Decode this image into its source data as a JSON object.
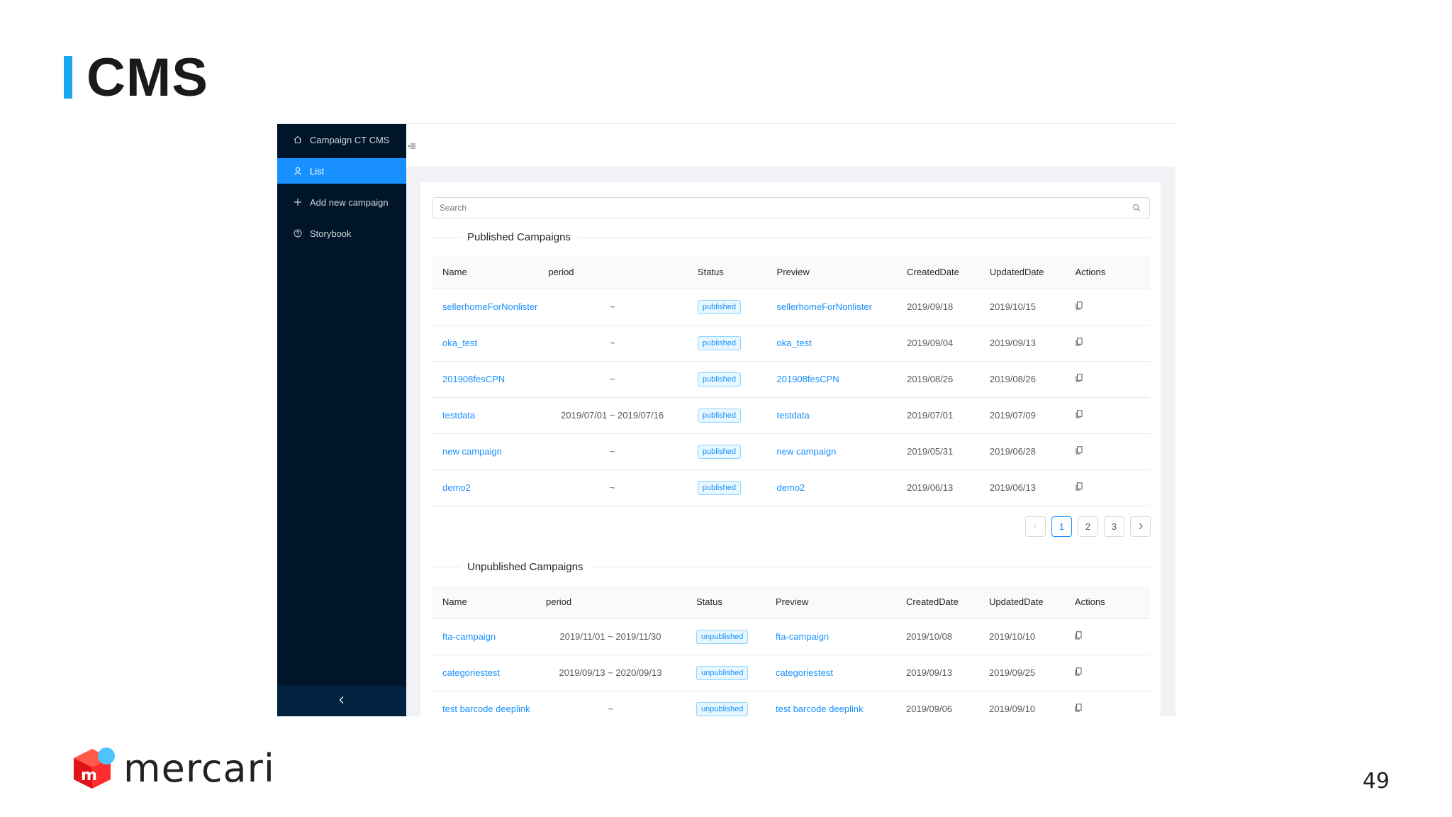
{
  "slide": {
    "title": "CMS",
    "page_number": "49",
    "logo_text": "mercari",
    "logo_mark_letter": "m",
    "accent_color": "#1aa8f0"
  },
  "sidebar": {
    "items": [
      {
        "label": "Campaign CT CMS",
        "icon": "home-icon"
      },
      {
        "label": "List",
        "icon": "user-icon",
        "active": true
      },
      {
        "label": "Add new campaign",
        "icon": "plus-icon"
      },
      {
        "label": "Storybook",
        "icon": "question-circle-icon"
      }
    ],
    "collapse_icon": "chevron-left-icon"
  },
  "search": {
    "placeholder": "Search"
  },
  "columns": {
    "name": "Name",
    "period": "period",
    "status": "Status",
    "preview": "Preview",
    "created": "CreatedDate",
    "updated": "UpdatedDate",
    "actions": "Actions"
  },
  "published": {
    "title": "Published Campaigns",
    "rows": [
      {
        "name": "sellerhomeForNonlister",
        "period": "~",
        "status": "published",
        "preview": "sellerhomeForNonlister",
        "created": "2019/09/18",
        "updated": "2019/10/15"
      },
      {
        "name": "oka_test",
        "period": "~",
        "status": "published",
        "preview": "oka_test",
        "created": "2019/09/04",
        "updated": "2019/09/13"
      },
      {
        "name": "201908fesCPN",
        "period": "~",
        "status": "published",
        "preview": "201908fesCPN",
        "created": "2019/08/26",
        "updated": "2019/08/26"
      },
      {
        "name": "testdata",
        "period": "2019/07/01 ~ 2019/07/16",
        "status": "published",
        "preview": "testdata",
        "created": "2019/07/01",
        "updated": "2019/07/09"
      },
      {
        "name": "new campaign",
        "period": "~",
        "status": "published",
        "preview": "new campaign",
        "created": "2019/05/31",
        "updated": "2019/06/28"
      },
      {
        "name": "demo2",
        "period": "~",
        "status": "published",
        "preview": "demo2",
        "created": "2019/06/13",
        "updated": "2019/06/13"
      }
    ]
  },
  "pagination": {
    "pages": [
      "1",
      "2",
      "3"
    ],
    "current": "1"
  },
  "unpublished": {
    "title": "Unpublished Campaigns",
    "rows": [
      {
        "name": "fta-campaign",
        "period": "2019/11/01 ~ 2019/11/30",
        "status": "unpublished",
        "preview": "fta-campaign",
        "created": "2019/10/08",
        "updated": "2019/10/10"
      },
      {
        "name": "categoriestest",
        "period": "2019/09/13 ~ 2020/09/13",
        "status": "unpublished",
        "preview": "categoriestest",
        "created": "2019/09/13",
        "updated": "2019/09/25"
      },
      {
        "name": "test barcode deeplink",
        "period": "~",
        "status": "unpublished",
        "preview": "test barcode deeplink",
        "created": "2019/09/06",
        "updated": "2019/09/10"
      }
    ]
  }
}
